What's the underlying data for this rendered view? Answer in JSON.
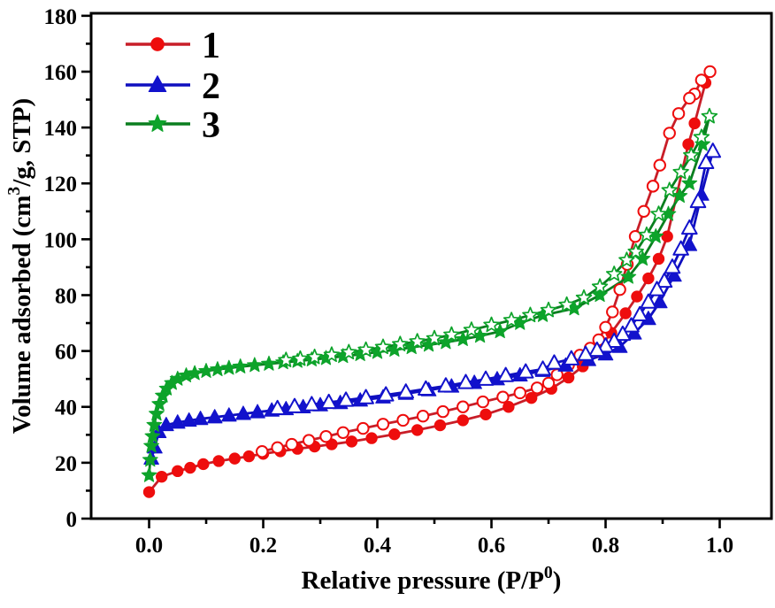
{
  "figure": {
    "background": "#ffffff",
    "border_color": "#000000"
  },
  "chart_data": {
    "type": "line",
    "title": "",
    "description": "Nitrogen adsorption-desorption isotherms for three samples, filled markers = adsorption branch, open markers = desorption branch",
    "xlabel_segments": [
      {
        "t": "Relative pressure (P/P"
      },
      {
        "t": "0",
        "sup": true
      },
      {
        "t": ")"
      }
    ],
    "ylabel_segments": [
      {
        "t": "Volume adsorbed (cm"
      },
      {
        "t": "3",
        "sup": true
      },
      {
        "t": "/g, STP)"
      }
    ],
    "x_axis": {
      "min": -0.1016,
      "max": 1.0907,
      "major_ticks": [
        0.0,
        0.2,
        0.4,
        0.6,
        0.8,
        1.0
      ],
      "tick_labels": [
        "0.0",
        "0.2",
        "0.4",
        "0.6",
        "0.8",
        "1.0"
      ],
      "minor_ticks": [
        0.1,
        0.3,
        0.5,
        0.7,
        0.9
      ],
      "grid": false
    },
    "y_axis": {
      "min": 0,
      "max": 180.9,
      "major_ticks": [
        0,
        20,
        40,
        60,
        80,
        100,
        120,
        140,
        160,
        180
      ],
      "tick_labels": [
        "0",
        "20",
        "40",
        "60",
        "80",
        "100",
        "120",
        "140",
        "160",
        "180"
      ],
      "minor_ticks": [
        10,
        30,
        50,
        70,
        90,
        110,
        130,
        150,
        170
      ],
      "grid": false
    },
    "legend": {
      "position": "top-left",
      "entries": [
        {
          "label": "1",
          "marker": "circle",
          "color": "#ee0d0d",
          "line_color": "#c81e28"
        },
        {
          "label": "2",
          "marker": "triangle",
          "color": "#1212cc",
          "line_color": "#0f0fbf"
        },
        {
          "label": "3",
          "marker": "star",
          "color": "#0da32a",
          "line_color": "#0a7e1f"
        }
      ]
    },
    "series": [
      {
        "name": "1",
        "marker": "circle",
        "marker_color": "#ee0d0d",
        "line_color": "#c81e28",
        "branches": [
          {
            "branch": "adsorption",
            "marker_fill": "filled",
            "points": [
              [
                0.0,
                9.5
              ],
              [
                0.022,
                15.0
              ],
              [
                0.05,
                17.0
              ],
              [
                0.072,
                18.2
              ],
              [
                0.095,
                19.5
              ],
              [
                0.122,
                20.6
              ],
              [
                0.15,
                21.5
              ],
              [
                0.175,
                22.3
              ],
              [
                0.2,
                23.2
              ],
              [
                0.23,
                24.1
              ],
              [
                0.26,
                25.0
              ],
              [
                0.29,
                25.8
              ],
              [
                0.32,
                26.6
              ],
              [
                0.355,
                27.6
              ],
              [
                0.39,
                28.8
              ],
              [
                0.43,
                30.2
              ],
              [
                0.47,
                31.7
              ],
              [
                0.51,
                33.4
              ],
              [
                0.55,
                35.2
              ],
              [
                0.59,
                37.3
              ],
              [
                0.63,
                40.0
              ],
              [
                0.67,
                43.2
              ],
              [
                0.705,
                46.5
              ],
              [
                0.735,
                50.5
              ],
              [
                0.76,
                54.5
              ],
              [
                0.785,
                60.0
              ],
              [
                0.81,
                66.5
              ],
              [
                0.835,
                73.5
              ],
              [
                0.855,
                79.5
              ],
              [
                0.875,
                86.0
              ],
              [
                0.893,
                93.0
              ],
              [
                0.908,
                101.0
              ],
              [
                0.945,
                134.0
              ],
              [
                0.956,
                141.5
              ],
              [
                0.975,
                156.0
              ],
              [
                0.983,
                160.0
              ]
            ]
          },
          {
            "branch": "desorption",
            "marker_fill": "open",
            "points": [
              [
                0.983,
                160.0
              ],
              [
                0.968,
                157.0
              ],
              [
                0.956,
                152.0
              ],
              [
                0.947,
                150.5
              ],
              [
                0.928,
                145.0
              ],
              [
                0.912,
                138.0
              ],
              [
                0.895,
                126.5
              ],
              [
                0.883,
                119.0
              ],
              [
                0.867,
                110.0
              ],
              [
                0.852,
                101.0
              ],
              [
                0.838,
                91.0
              ],
              [
                0.825,
                82.0
              ],
              [
                0.812,
                74.0
              ],
              [
                0.8,
                68.5
              ],
              [
                0.788,
                64.0
              ],
              [
                0.773,
                61.0
              ],
              [
                0.755,
                58.5
              ],
              [
                0.735,
                55.0
              ],
              [
                0.715,
                51.5
              ],
              [
                0.7,
                48.5
              ],
              [
                0.68,
                46.8
              ],
              [
                0.65,
                45.0
              ],
              [
                0.62,
                43.5
              ],
              [
                0.585,
                41.8
              ],
              [
                0.55,
                40.0
              ],
              [
                0.515,
                38.3
              ],
              [
                0.48,
                36.7
              ],
              [
                0.445,
                35.2
              ],
              [
                0.41,
                33.8
              ],
              [
                0.375,
                32.3
              ],
              [
                0.34,
                30.8
              ],
              [
                0.31,
                29.4
              ],
              [
                0.28,
                28.0
              ],
              [
                0.25,
                26.6
              ],
              [
                0.225,
                25.4
              ],
              [
                0.198,
                24.0
              ]
            ]
          }
        ]
      },
      {
        "name": "2",
        "marker": "triangle",
        "marker_color": "#1212cc",
        "line_color": "#0f0fbf",
        "branches": [
          {
            "branch": "adsorption",
            "marker_fill": "filled",
            "points": [
              [
                0.004,
                21.5
              ],
              [
                0.01,
                25.5
              ],
              [
                0.017,
                31.0
              ],
              [
                0.03,
                33.5
              ],
              [
                0.05,
                34.4
              ],
              [
                0.07,
                35.1
              ],
              [
                0.09,
                35.7
              ],
              [
                0.115,
                36.3
              ],
              [
                0.14,
                36.9
              ],
              [
                0.165,
                37.5
              ],
              [
                0.19,
                38.1
              ],
              [
                0.215,
                38.7
              ],
              [
                0.24,
                39.2
              ],
              [
                0.27,
                39.9
              ],
              [
                0.3,
                40.6
              ],
              [
                0.335,
                41.4
              ],
              [
                0.37,
                42.3
              ],
              [
                0.41,
                43.4
              ],
              [
                0.45,
                44.7
              ],
              [
                0.49,
                46.0
              ],
              [
                0.53,
                47.3
              ],
              [
                0.57,
                48.6
              ],
              [
                0.61,
                49.9
              ],
              [
                0.65,
                51.3
              ],
              [
                0.69,
                52.9
              ],
              [
                0.73,
                54.8
              ],
              [
                0.77,
                56.8
              ],
              [
                0.8,
                58.8
              ],
              [
                0.825,
                61.5
              ],
              [
                0.85,
                66.3
              ],
              [
                0.875,
                71.5
              ],
              [
                0.895,
                77.5
              ],
              [
                0.92,
                87.0
              ],
              [
                0.947,
                98.0
              ],
              [
                0.968,
                116.0
              ],
              [
                0.988,
                131.5
              ]
            ]
          },
          {
            "branch": "desorption",
            "marker_fill": "open",
            "points": [
              [
                0.988,
                131.5
              ],
              [
                0.976,
                127.5
              ],
              [
                0.962,
                113.5
              ],
              [
                0.947,
                104.0
              ],
              [
                0.932,
                96.5
              ],
              [
                0.917,
                90.0
              ],
              [
                0.903,
                85.0
              ],
              [
                0.89,
                82.0
              ],
              [
                0.875,
                77.5
              ],
              [
                0.86,
                73.0
              ],
              [
                0.845,
                69.0
              ],
              [
                0.83,
                66.0
              ],
              [
                0.815,
                63.5
              ],
              [
                0.8,
                61.8
              ],
              [
                0.785,
                60.3
              ],
              [
                0.765,
                58.8
              ],
              [
                0.74,
                57.2
              ],
              [
                0.71,
                55.7
              ],
              [
                0.69,
                53.5
              ],
              [
                0.66,
                52.5
              ],
              [
                0.625,
                51.2
              ],
              [
                0.59,
                49.9
              ],
              [
                0.555,
                48.7
              ],
              [
                0.52,
                47.5
              ],
              [
                0.485,
                46.4
              ],
              [
                0.45,
                45.3
              ],
              [
                0.415,
                44.3
              ],
              [
                0.38,
                43.3
              ],
              [
                0.345,
                42.4
              ],
              [
                0.315,
                41.6
              ],
              [
                0.285,
                40.8
              ],
              [
                0.255,
                40.1
              ],
              [
                0.225,
                39.4
              ]
            ]
          }
        ]
      },
      {
        "name": "3",
        "marker": "star",
        "marker_color": "#0da32a",
        "line_color": "#0a7e1f",
        "branches": [
          {
            "branch": "adsorption",
            "marker_fill": "filled",
            "points": [
              [
                0.0,
                15.5
              ],
              [
                0.002,
                21.0
              ],
              [
                0.004,
                26.0
              ],
              [
                0.006,
                29.5
              ],
              [
                0.009,
                33.5
              ],
              [
                0.013,
                37.5
              ],
              [
                0.018,
                41.0
              ],
              [
                0.024,
                44.0
              ],
              [
                0.031,
                46.5
              ],
              [
                0.04,
                48.5
              ],
              [
                0.05,
                50.0
              ],
              [
                0.065,
                51.2
              ],
              [
                0.08,
                52.0
              ],
              [
                0.1,
                52.8
              ],
              [
                0.12,
                53.4
              ],
              [
                0.14,
                53.9
              ],
              [
                0.16,
                54.4
              ],
              [
                0.185,
                54.9
              ],
              [
                0.21,
                55.4
              ],
              [
                0.235,
                55.9
              ],
              [
                0.26,
                56.4
              ],
              [
                0.285,
                56.9
              ],
              [
                0.31,
                57.4
              ],
              [
                0.34,
                58.1
              ],
              [
                0.37,
                58.8
              ],
              [
                0.4,
                59.6
              ],
              [
                0.43,
                60.4
              ],
              [
                0.46,
                61.3
              ],
              [
                0.49,
                62.2
              ],
              [
                0.52,
                63.1
              ],
              [
                0.55,
                64.2
              ],
              [
                0.58,
                65.4
              ],
              [
                0.615,
                67.0
              ],
              [
                0.65,
                70.0
              ],
              [
                0.69,
                72.8
              ],
              [
                0.745,
                75.2
              ],
              [
                0.79,
                80.0
              ],
              [
                0.84,
                86.5
              ],
              [
                0.865,
                93.0
              ],
              [
                0.888,
                101.0
              ],
              [
                0.91,
                109.0
              ],
              [
                0.93,
                115.5
              ],
              [
                0.947,
                120.0
              ],
              [
                0.97,
                134.0
              ],
              [
                0.982,
                144.0
              ]
            ]
          },
          {
            "branch": "desorption",
            "marker_fill": "open",
            "points": [
              [
                0.982,
                144.0
              ],
              [
                0.968,
                136.5
              ],
              [
                0.95,
                130.0
              ],
              [
                0.932,
                124.0
              ],
              [
                0.912,
                117.5
              ],
              [
                0.893,
                109.0
              ],
              [
                0.872,
                101.5
              ],
              [
                0.853,
                95.5
              ],
              [
                0.837,
                92.5
              ],
              [
                0.815,
                87.5
              ],
              [
                0.79,
                83.0
              ],
              [
                0.762,
                79.0
              ],
              [
                0.732,
                76.5
              ],
              [
                0.7,
                74.6
              ],
              [
                0.668,
                72.8
              ],
              [
                0.635,
                71.0
              ],
              [
                0.6,
                69.3
              ],
              [
                0.565,
                67.5
              ],
              [
                0.53,
                65.8
              ],
              [
                0.5,
                64.5
              ],
              [
                0.47,
                63.4
              ],
              [
                0.44,
                62.4
              ],
              [
                0.41,
                61.4
              ],
              [
                0.38,
                60.4
              ],
              [
                0.35,
                59.5
              ],
              [
                0.32,
                58.6
              ],
              [
                0.29,
                57.8
              ],
              [
                0.265,
                57.2
              ],
              [
                0.24,
                56.7
              ]
            ]
          }
        ]
      }
    ]
  }
}
